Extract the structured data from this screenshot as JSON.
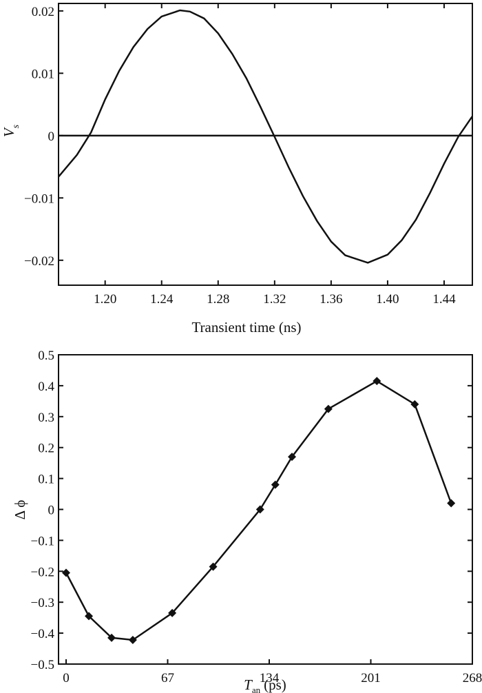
{
  "chart_data": [
    {
      "type": "line",
      "title": "",
      "xlabel": "Transient time (ns)",
      "ylabel": "V",
      "ylabel_subscript": "s",
      "xlim": [
        1.167,
        1.46
      ],
      "ylim": [
        -0.024,
        0.0212
      ],
      "xticks": [
        1.2,
        1.24,
        1.28,
        1.32,
        1.36,
        1.4,
        1.44
      ],
      "xtick_labels": [
        "1.20",
        "1.24",
        "1.28",
        "1.32",
        "1.36",
        "1.40",
        "1.44"
      ],
      "yticks": [
        0.02,
        0.01,
        0,
        -0.01,
        -0.02
      ],
      "ytick_labels": [
        "0.02",
        "0.01",
        "0",
        "−0.01",
        "−0.02"
      ],
      "grid": false,
      "reference_line": {
        "y": 0
      },
      "series": [
        {
          "x": [
            1.167,
            1.18,
            1.19,
            1.2,
            1.21,
            1.22,
            1.23,
            1.24,
            1.253,
            1.26,
            1.27,
            1.28,
            1.29,
            1.3,
            1.31,
            1.32,
            1.33,
            1.34,
            1.35,
            1.36,
            1.37,
            1.386,
            1.4,
            1.41,
            1.42,
            1.43,
            1.44,
            1.45,
            1.46
          ],
          "y": [
            -0.0066,
            -0.0031,
            0.0005,
            0.0058,
            0.0104,
            0.0142,
            0.0171,
            0.0191,
            0.0201,
            0.0199,
            0.0188,
            0.0164,
            0.0131,
            0.0092,
            0.0046,
            -0.0002,
            -0.0051,
            -0.0097,
            -0.0137,
            -0.017,
            -0.0192,
            -0.0204,
            -0.0191,
            -0.0168,
            -0.0135,
            -0.0092,
            -0.0045,
            -0.0002,
            0.0031
          ]
        }
      ]
    },
    {
      "type": "line",
      "title": "",
      "xlabel": "T",
      "xlabel_subscript": "an",
      "xlabel_unit": "(ps)",
      "ylabel": "Δ ϕ",
      "xlim": [
        -5,
        268
      ],
      "ylim": [
        -0.5,
        0.5
      ],
      "xticks": [
        0,
        67,
        134,
        201,
        268
      ],
      "xtick_labels": [
        "0",
        "67",
        "134",
        "201",
        "268"
      ],
      "yticks": [
        0.5,
        0.4,
        0.3,
        0.2,
        0.1,
        0,
        -0.1,
        -0.2,
        -0.3,
        -0.4,
        -0.5
      ],
      "ytick_labels": [
        "0.5",
        "0.4",
        "0.3",
        "0.2",
        "0.1",
        "0",
        "−0.1",
        "−0.2",
        "−0.3",
        "−0.4",
        "−0.5"
      ],
      "grid": false,
      "marker": "diamond",
      "series": [
        {
          "x": [
            0,
            15,
            30,
            44,
            70,
            97,
            128,
            138,
            149,
            173,
            205,
            230,
            254
          ],
          "y": [
            -0.205,
            -0.345,
            -0.415,
            -0.422,
            -0.335,
            -0.185,
            0.0,
            0.08,
            0.17,
            0.325,
            0.415,
            0.34,
            0.02
          ]
        }
      ]
    }
  ]
}
